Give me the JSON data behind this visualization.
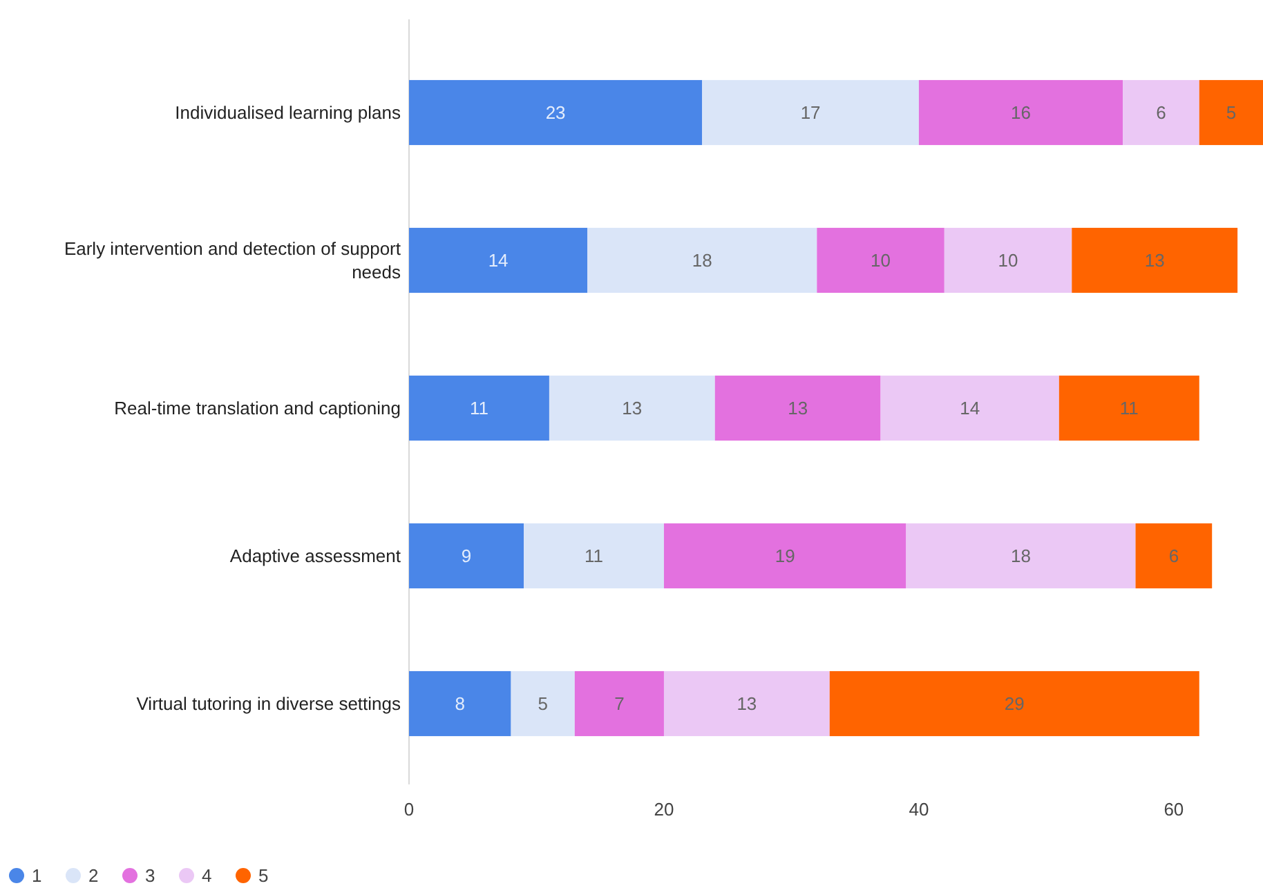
{
  "chart_data": {
    "type": "bar",
    "orientation": "horizontal",
    "stacked": true,
    "data_labels": true,
    "legend": "bottom left",
    "grid": false,
    "categories": [
      "Individualised learning plans",
      "Early intervention and detection of support needs",
      "Real-time translation and captioning",
      "Adaptive assessment",
      "Virtual tutoring in diverse settings"
    ],
    "series": [
      {
        "name": "1",
        "color": "#4a86e8",
        "values": [
          23,
          14,
          11,
          9,
          8
        ]
      },
      {
        "name": "2",
        "color": "#dae5f8",
        "values": [
          17,
          18,
          13,
          11,
          5
        ]
      },
      {
        "name": "3",
        "color": "#e371df",
        "values": [
          16,
          10,
          13,
          19,
          7
        ]
      },
      {
        "name": "4",
        "color": "#ebc8f5",
        "values": [
          6,
          10,
          14,
          18,
          13
        ]
      },
      {
        "name": "5",
        "color": "#ff6400",
        "values": [
          5,
          13,
          11,
          6,
          29
        ]
      }
    ],
    "xlim": [
      0,
      67
    ],
    "xticks": [
      0,
      20,
      40,
      60
    ]
  }
}
